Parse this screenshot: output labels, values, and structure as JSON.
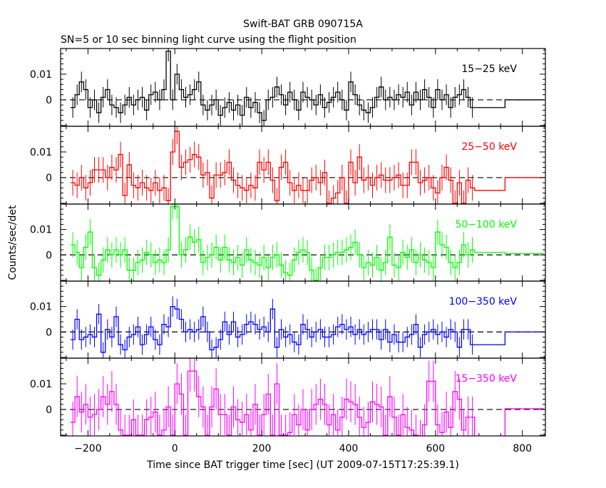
{
  "chart_data": {
    "type": "line",
    "title": "Swift-BAT GRB 090715A",
    "subtitle": "SN=5 or 10 sec binning light curve using the flight position",
    "xlabel": "Time since BAT trigger time [sec] (UT 2009-07-15T17:25:39.1)",
    "ylabel": "Counts/sec/det",
    "xlim": [
      -263,
      853
    ],
    "xticks": [
      -200,
      0,
      200,
      400,
      600,
      800
    ],
    "xtick_labels": [
      "−200",
      "0",
      "200",
      "400",
      "600",
      "800"
    ],
    "ylim_milli": [
      -10.3,
      20
    ],
    "value_unit": "values in units of 0.001 counts/sec/det",
    "yticks_milli": [
      0,
      10
    ],
    "ytick_labels": [
      "0",
      "0.01"
    ],
    "bin_start": -240,
    "bin_width": 10,
    "grid": false,
    "series": [
      {
        "name": "15−25 keV",
        "color": "#000000",
        "error_milli": 4,
        "values_milli": [
          -3,
          2,
          7,
          4,
          -3,
          0,
          -5,
          1,
          4,
          -2,
          -3,
          -5,
          -2,
          1,
          -2,
          0,
          1,
          -4,
          2,
          3,
          0,
          4,
          19,
          0,
          10,
          4,
          1,
          2,
          4,
          7,
          -2,
          -4,
          -2,
          0,
          -6,
          -3,
          -1,
          -4,
          -2,
          -6,
          1,
          -3,
          -1,
          -5,
          -8,
          0,
          1,
          5,
          2,
          -2,
          3,
          0,
          -4,
          3,
          1,
          0,
          -2,
          2,
          -3,
          -1,
          1,
          3,
          0,
          -4,
          7,
          2,
          -2,
          -4,
          -5,
          -3,
          1,
          5,
          0,
          1,
          0,
          2,
          1,
          3,
          -2,
          3,
          0,
          4,
          1,
          -3,
          4,
          0,
          2,
          -3,
          1,
          2,
          4,
          1,
          -3
        ],
        "tail": [
          [
            690,
            760,
            -3
          ],
          [
            760,
            850,
            0
          ]
        ]
      },
      {
        "name": "25−50 keV",
        "color": "#ff0000",
        "error_milli": 5,
        "values_milli": [
          -2,
          -3,
          0,
          -4,
          -2,
          3,
          3,
          3,
          0,
          4,
          3,
          9,
          -7,
          5,
          -3,
          -4,
          -2,
          -4,
          -5,
          -2,
          -5,
          -4,
          -9,
          10,
          18,
          4,
          6,
          7,
          9,
          8,
          1,
          2,
          -8,
          1,
          1,
          2,
          6,
          -1,
          -3,
          -4,
          -5,
          -3,
          -4,
          6,
          3,
          6,
          -1,
          -9,
          4,
          6,
          -2,
          -5,
          -3,
          -5,
          -5,
          -1,
          0,
          -2,
          2,
          -10,
          -8,
          -6,
          0,
          -10,
          6,
          -2,
          8,
          -1,
          0,
          -3,
          0,
          1,
          -1,
          -1,
          0,
          1,
          -3,
          -3,
          6,
          6,
          -2,
          -1,
          0,
          -4,
          -6,
          0,
          4,
          -1,
          -10,
          -2,
          -10,
          -1,
          -4
        ],
        "tail": [
          [
            690,
            760,
            -5
          ],
          [
            760,
            850,
            0
          ]
        ]
      },
      {
        "name": "50−100 keV",
        "color": "#00ff00",
        "error_milli": 5,
        "values_milli": [
          4,
          1,
          -5,
          3,
          9,
          -5,
          -8,
          -2,
          2,
          0,
          2,
          0,
          2,
          -6,
          -6,
          -3,
          -2,
          1,
          0,
          -3,
          -2,
          -3,
          2,
          19,
          19,
          0,
          2,
          7,
          5,
          6,
          -3,
          -1,
          0,
          3,
          -2,
          3,
          -2,
          -3,
          -1,
          -4,
          2,
          -2,
          -3,
          -4,
          -1,
          -5,
          -1,
          0,
          -4,
          -7,
          -8,
          -2,
          1,
          2,
          1,
          -6,
          -10,
          -5,
          -1,
          -1,
          0,
          1,
          1,
          2,
          3,
          5,
          0,
          -5,
          -3,
          -4,
          -1,
          -6,
          -3,
          7,
          -4,
          -5,
          1,
          -1,
          2,
          -3,
          0,
          -2,
          -3,
          -5,
          9,
          4,
          3,
          -3,
          -5,
          -3,
          4,
          0,
          2
        ],
        "tail": [
          [
            690,
            760,
            1
          ],
          [
            760,
            850,
            0.5
          ]
        ]
      },
      {
        "name": "100−350 keV",
        "color": "#0000ff",
        "error_milli": 4,
        "values_milli": [
          -3,
          5,
          -3,
          -2,
          -1,
          -2,
          7,
          -8,
          1,
          -2,
          6,
          -5,
          -7,
          -2,
          -1,
          2,
          -5,
          -1,
          2,
          -3,
          -5,
          3,
          2,
          10,
          9,
          5,
          0,
          1,
          0,
          1,
          6,
          0,
          -7,
          -6,
          -3,
          4,
          -1,
          4,
          -2,
          -1,
          3,
          4,
          3,
          1,
          2,
          0,
          9,
          -6,
          1,
          -2,
          -1,
          -4,
          -5,
          3,
          1,
          -2,
          0,
          1,
          -2,
          -2,
          -1,
          2,
          3,
          1,
          2,
          -1,
          1,
          -1,
          0,
          1,
          1,
          -3,
          1,
          -4,
          -1,
          -4,
          -4,
          -2,
          -1,
          3,
          -6,
          -1,
          0,
          1,
          -1,
          0,
          -2,
          1,
          0,
          -6,
          1,
          1,
          -5
        ],
        "tail": [
          [
            690,
            760,
            -5
          ],
          [
            760,
            850,
            0
          ]
        ]
      },
      {
        "name": "15−350 keV",
        "color": "#ff00ff",
        "error_milli": 8,
        "values_milli": [
          -5,
          5,
          -1,
          2,
          -3,
          -2,
          0,
          5,
          2,
          7,
          2,
          -8,
          -10,
          -10,
          -4,
          -10,
          -10,
          -4,
          -3,
          -1,
          -10,
          -8,
          1,
          -10,
          10,
          6,
          -10,
          15,
          15,
          5,
          1,
          -10,
          1,
          8,
          -2,
          -2,
          -10,
          1,
          -4,
          -5,
          -2,
          -8,
          2,
          -10,
          -2,
          6,
          -10,
          10,
          -10,
          -10,
          -9,
          -2,
          -6,
          0,
          -8,
          0,
          2,
          4,
          2,
          -6,
          -2,
          -8,
          -3,
          4,
          3,
          2,
          -3,
          -7,
          -5,
          3,
          2,
          1,
          -10,
          5,
          -3,
          -10,
          -2,
          -7,
          -8,
          -10,
          -12,
          -6,
          11,
          11,
          -6,
          -9,
          -1,
          -7,
          7,
          4,
          -8,
          -3,
          -3
        ],
        "tail": [
          [
            690,
            760,
            -12
          ],
          [
            760,
            850,
            0.3
          ]
        ]
      }
    ]
  }
}
